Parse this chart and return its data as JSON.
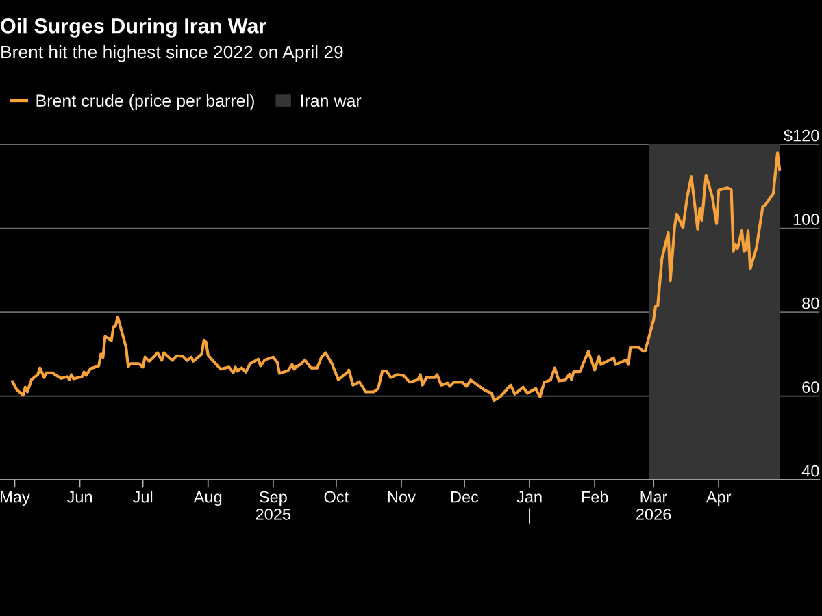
{
  "chart_data": {
    "type": "line",
    "title": "Oil Surges During Iran War",
    "subtitle": "Brent hit the highest since 2022 on April 29",
    "x": [
      "2025-04-30",
      "2025-05-02",
      "2025-05-05",
      "2025-05-06",
      "2025-05-07",
      "2025-05-09",
      "2025-05-12",
      "2025-05-13",
      "2025-05-15",
      "2025-05-16",
      "2025-05-19",
      "2025-05-23",
      "2025-05-26",
      "2025-05-27",
      "2025-05-28",
      "2025-05-29",
      "2025-06-02",
      "2025-06-03",
      "2025-06-04",
      "2025-06-06",
      "2025-06-10",
      "2025-06-11",
      "2025-06-12",
      "2025-06-13",
      "2025-06-16",
      "2025-06-17",
      "2025-06-18",
      "2025-06-19",
      "2025-06-23",
      "2025-06-24",
      "2025-06-25",
      "2025-06-29",
      "2025-07-01",
      "2025-07-02",
      "2025-07-04",
      "2025-07-08",
      "2025-07-10",
      "2025-07-11",
      "2025-07-15",
      "2025-07-17",
      "2025-07-20",
      "2025-07-22",
      "2025-07-24",
      "2025-07-25",
      "2025-07-29",
      "2025-07-30",
      "2025-07-31",
      "2025-08-01",
      "2025-08-03",
      "2025-08-07",
      "2025-08-11",
      "2025-08-13",
      "2025-08-14",
      "2025-08-15",
      "2025-08-17",
      "2025-08-19",
      "2025-08-21",
      "2025-08-25",
      "2025-08-26",
      "2025-08-28",
      "2025-09-01",
      "2025-09-03",
      "2025-09-04",
      "2025-09-08",
      "2025-09-10",
      "2025-09-11",
      "2025-09-12",
      "2025-09-14",
      "2025-09-16",
      "2025-09-19",
      "2025-09-22",
      "2025-09-24",
      "2025-09-26",
      "2025-09-29",
      "2025-10-02",
      "2025-10-06",
      "2025-10-07",
      "2025-10-09",
      "2025-10-12",
      "2025-10-15",
      "2025-10-19",
      "2025-10-21",
      "2025-10-23",
      "2025-10-25",
      "2025-10-27",
      "2025-10-30",
      "2025-11-02",
      "2025-11-05",
      "2025-11-09",
      "2025-11-10",
      "2025-11-11",
      "2025-11-13",
      "2025-11-17",
      "2025-11-18",
      "2025-11-20",
      "2025-11-23",
      "2025-11-24",
      "2025-11-26",
      "2025-11-30",
      "2025-12-02",
      "2025-12-04",
      "2025-12-09",
      "2025-12-11",
      "2025-12-14",
      "2025-12-15",
      "2025-12-18",
      "2025-12-23",
      "2025-12-25",
      "2025-12-29",
      "2025-12-31",
      "2026-01-04",
      "2026-01-06",
      "2026-01-08",
      "2026-01-11",
      "2026-01-13",
      "2026-01-15",
      "2026-01-18",
      "2026-01-20",
      "2026-01-21",
      "2026-01-22",
      "2026-01-25",
      "2026-01-29",
      "2026-02-01",
      "2026-02-03",
      "2026-02-04",
      "2026-02-10",
      "2026-02-11",
      "2026-02-16",
      "2026-02-17",
      "2026-02-18",
      "2026-02-22",
      "2026-02-24",
      "2026-02-25",
      "2026-03-01",
      "2026-03-02",
      "2026-03-03",
      "2026-03-05",
      "2026-03-08",
      "2026-03-09",
      "2026-03-11",
      "2026-03-12",
      "2026-03-15",
      "2026-03-17",
      "2026-03-19",
      "2026-03-22",
      "2026-03-23",
      "2026-03-24",
      "2026-03-26",
      "2026-03-29",
      "2026-03-31",
      "2026-04-01",
      "2026-04-05",
      "2026-04-07",
      "2026-04-08",
      "2026-04-09",
      "2026-04-10",
      "2026-04-12",
      "2026-04-13",
      "2026-04-14",
      "2026-04-15",
      "2026-04-16",
      "2026-04-19",
      "2026-04-22",
      "2026-04-23",
      "2026-04-27",
      "2026-04-29",
      "2026-04-30"
    ],
    "series": [
      {
        "name": "Brent crude (price per barrel)",
        "color": "#f7a23b",
        "values": [
          63.4,
          61.5,
          60.2,
          62.1,
          61.0,
          63.9,
          65.1,
          66.7,
          64.4,
          65.5,
          65.5,
          64.2,
          64.6,
          63.9,
          65.1,
          64.1,
          64.6,
          65.7,
          64.9,
          66.5,
          67.2,
          70.0,
          69.2,
          74.2,
          73.2,
          76.5,
          76.7,
          78.9,
          71.6,
          67.0,
          67.7,
          67.7,
          66.9,
          69.3,
          68.3,
          70.3,
          68.5,
          70.3,
          68.5,
          69.6,
          69.5,
          68.5,
          69.3,
          68.3,
          70.0,
          73.2,
          72.9,
          69.8,
          68.6,
          66.4,
          66.9,
          65.5,
          66.9,
          65.9,
          66.7,
          65.7,
          67.7,
          68.8,
          67.2,
          68.6,
          69.3,
          68.0,
          65.4,
          66.0,
          67.5,
          66.4,
          67.0,
          67.5,
          68.6,
          66.7,
          66.7,
          69.3,
          70.3,
          67.7,
          63.9,
          65.5,
          66.2,
          62.6,
          63.4,
          61.0,
          61.0,
          61.8,
          66.0,
          65.9,
          64.4,
          65.1,
          64.9,
          63.3,
          63.9,
          65.1,
          62.6,
          64.4,
          64.4,
          65.1,
          62.6,
          63.1,
          62.3,
          63.3,
          63.3,
          62.3,
          63.8,
          62.0,
          61.3,
          60.7,
          58.9,
          59.8,
          62.6,
          60.5,
          62.1,
          60.7,
          61.8,
          59.8,
          63.3,
          63.8,
          66.7,
          63.6,
          63.8,
          65.2,
          63.9,
          65.8,
          65.8,
          70.7,
          66.2,
          69.4,
          67.5,
          69.1,
          67.5,
          68.6,
          67.5,
          71.6,
          71.6,
          70.7,
          70.7,
          78.1,
          81.5,
          81.5,
          92.8,
          99.0,
          87.5,
          100.1,
          103.4,
          100.1,
          107.4,
          112.3,
          99.8,
          104.7,
          101.9,
          112.7,
          107.4,
          101.1,
          109.1,
          109.7,
          109.2,
          94.6,
          96.2,
          95.2,
          99.4,
          94.6,
          94.8,
          99.4,
          90.3,
          95.4,
          105.2,
          105.5,
          108.3,
          118.0,
          114.0
        ]
      }
    ],
    "bands": [
      {
        "axis": "x",
        "from": "2026-02-27",
        "to": "2026-04-30",
        "label": "Iran war",
        "color": "#353535"
      }
    ],
    "xlim": [
      "2025-04-24",
      "2026-05-19"
    ],
    "xticks": [
      {
        "value": "2025-05-01",
        "label": "May"
      },
      {
        "value": "2025-06-01",
        "label": "Jun"
      },
      {
        "value": "2025-07-01",
        "label": "Jul"
      },
      {
        "value": "2025-08-01",
        "label": "Aug"
      },
      {
        "value": "2025-09-01",
        "label": "Sep\n2025"
      },
      {
        "value": "2025-10-01",
        "label": "Oct"
      },
      {
        "value": "2025-11-01",
        "label": "Nov"
      },
      {
        "value": "2025-12-01",
        "label": "Dec"
      },
      {
        "value": "2026-01-01",
        "label": "Jan\n|"
      },
      {
        "value": "2026-02-01",
        "label": "Feb"
      },
      {
        "value": "2026-03-01",
        "label": "Mar\n2026"
      },
      {
        "value": "2026-04-01",
        "label": "Apr"
      }
    ],
    "ylim": [
      40,
      120
    ],
    "yticks": [
      40,
      60,
      80,
      100,
      {
        "value": 120,
        "label": "$120"
      }
    ],
    "grid": "y",
    "legend": "top left",
    "line_style": "solid",
    "marker": "none"
  }
}
